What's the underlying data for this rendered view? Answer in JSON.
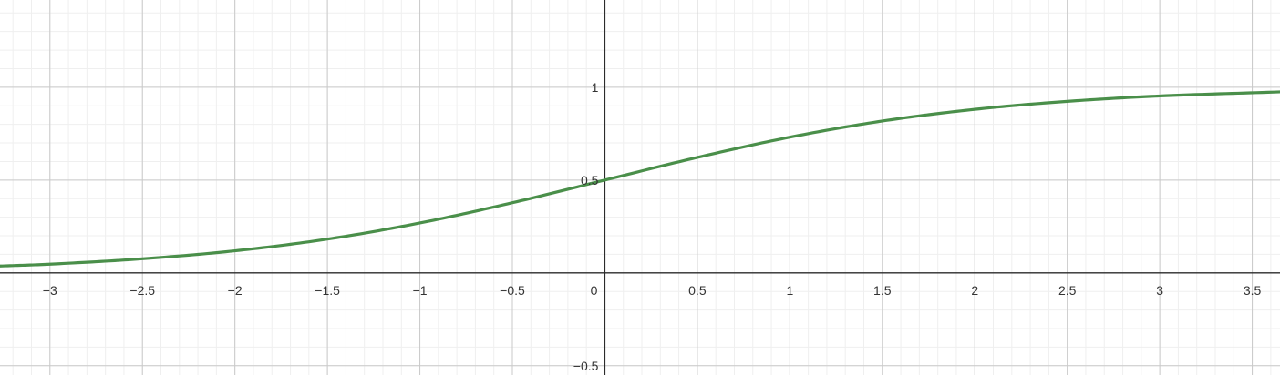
{
  "chart_data": {
    "type": "line",
    "xlim": [
      -3.27,
      3.65
    ],
    "ylim": [
      -0.55,
      1.47
    ],
    "grid": true,
    "major_step": {
      "x": 0.5,
      "y": 0.5
    },
    "minor_step": {
      "x": 0.1,
      "y": 0.1
    },
    "x_ticks": [
      {
        "value": -3,
        "label": "−3"
      },
      {
        "value": -2.5,
        "label": "−2.5"
      },
      {
        "value": -2,
        "label": "−2"
      },
      {
        "value": -1.5,
        "label": "−1.5"
      },
      {
        "value": -1,
        "label": "−1"
      },
      {
        "value": -0.5,
        "label": "−0.5"
      },
      {
        "value": 0,
        "label": "0"
      },
      {
        "value": 0.5,
        "label": "0.5"
      },
      {
        "value": 1,
        "label": "1"
      },
      {
        "value": 1.5,
        "label": "1.5"
      },
      {
        "value": 2,
        "label": "2"
      },
      {
        "value": 2.5,
        "label": "2.5"
      },
      {
        "value": 3,
        "label": "3"
      },
      {
        "value": 3.5,
        "label": "3.5"
      }
    ],
    "y_ticks": [
      {
        "value": -0.5,
        "label": "−0.5"
      },
      {
        "value": 0.5,
        "label": "0.5"
      },
      {
        "value": 1,
        "label": "1"
      }
    ],
    "series": [
      {
        "color": "#4a8f4a",
        "points": [
          [
            -3.27,
            0.037
          ],
          [
            -3.0,
            0.047
          ],
          [
            -2.5,
            0.076
          ],
          [
            -2.0,
            0.119
          ],
          [
            -1.5,
            0.182
          ],
          [
            -1.0,
            0.269
          ],
          [
            -0.5,
            0.378
          ],
          [
            0.0,
            0.5
          ],
          [
            0.5,
            0.622
          ],
          [
            1.0,
            0.731
          ],
          [
            1.5,
            0.818
          ],
          [
            2.0,
            0.881
          ],
          [
            2.5,
            0.924
          ],
          [
            3.0,
            0.953
          ],
          [
            3.65,
            0.975
          ]
        ]
      }
    ]
  }
}
